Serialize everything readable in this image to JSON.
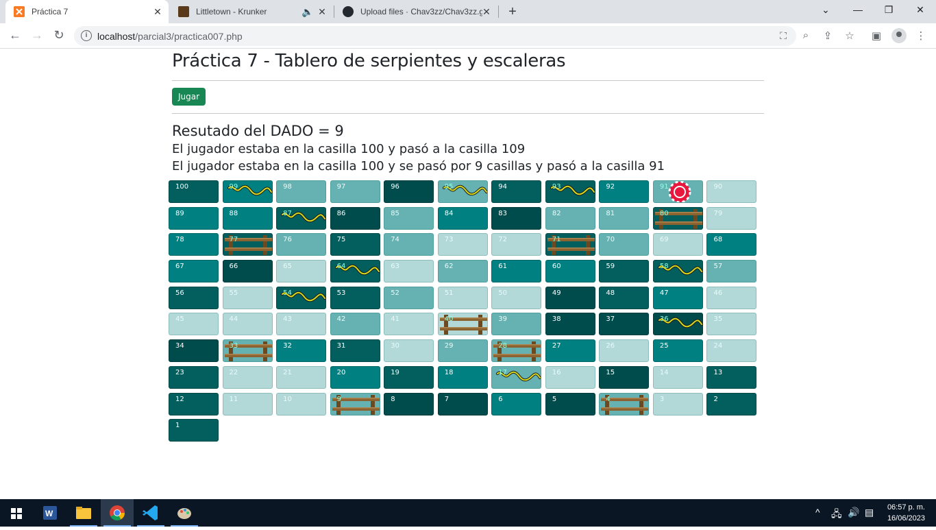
{
  "browser": {
    "tabs": [
      {
        "title": "Práctica 7",
        "active": true,
        "icon": "xampp-icon"
      },
      {
        "title": "Littletown - Krunker",
        "active": false,
        "icon": "krunker-icon",
        "audio": true
      },
      {
        "title": "Upload files · Chav3zz/Chav3zz.g",
        "active": false,
        "icon": "github-icon"
      }
    ],
    "url_host": "localhost",
    "url_path": "/parcial3/practica007.php"
  },
  "page": {
    "title": "Práctica 7 - Tablero de serpientes y escaleras",
    "button_label": "Jugar",
    "dice_result": "Resutado del DADO = 9",
    "message_1": "El jugador estaba en la casilla 100 y pasó a la casilla 109",
    "message_2": "El jugador estaba en la casilla 100 y se pasó por 9 casillas y pasó a la casilla 91"
  },
  "board": {
    "rows": [
      [
        "100",
        "99",
        "98",
        "97",
        "96",
        "95",
        "94",
        "93",
        "92",
        "91",
        "90"
      ],
      [
        "89",
        "88",
        "87",
        "86",
        "85",
        "84",
        "83",
        "82",
        "81",
        "80",
        "79"
      ],
      [
        "78",
        "77",
        "76",
        "75",
        "74",
        "73",
        "72",
        "71",
        "70",
        "69",
        "68"
      ],
      [
        "67",
        "66",
        "65",
        "64",
        "63",
        "62",
        "61",
        "60",
        "59",
        "58",
        "57"
      ],
      [
        "56",
        "55",
        "54",
        "53",
        "52",
        "51",
        "50",
        "49",
        "48",
        "47",
        "46"
      ],
      [
        "45",
        "44",
        "43",
        "42",
        "41",
        "40",
        "39",
        "38",
        "37",
        "36",
        "35"
      ],
      [
        "34",
        "33",
        "32",
        "31",
        "30",
        "29",
        "28",
        "27",
        "26",
        "25",
        "24"
      ],
      [
        "23",
        "22",
        "21",
        "20",
        "19",
        "18",
        "17",
        "16",
        "15",
        "14",
        "13"
      ],
      [
        "12",
        "11",
        "10",
        "9",
        "8",
        "7",
        "6",
        "5",
        "4",
        "3",
        "2"
      ],
      [
        "1"
      ]
    ],
    "snakes": [
      "99",
      "95",
      "93",
      "87",
      "64",
      "58",
      "54",
      "36",
      "17"
    ],
    "ladders": [
      "80",
      "77",
      "71",
      "40",
      "33",
      "28",
      "9",
      "4"
    ],
    "player": [
      "91"
    ],
    "colors": {
      "dark_teal": "#035e5e",
      "teal": "#008080",
      "mid_teal": "#66b2b2",
      "light_teal": "#b2d8d8",
      "deep_teal": "#004c4c"
    }
  },
  "taskbar": {
    "time": "06:57 p. m.",
    "date": "16/06/2023"
  }
}
